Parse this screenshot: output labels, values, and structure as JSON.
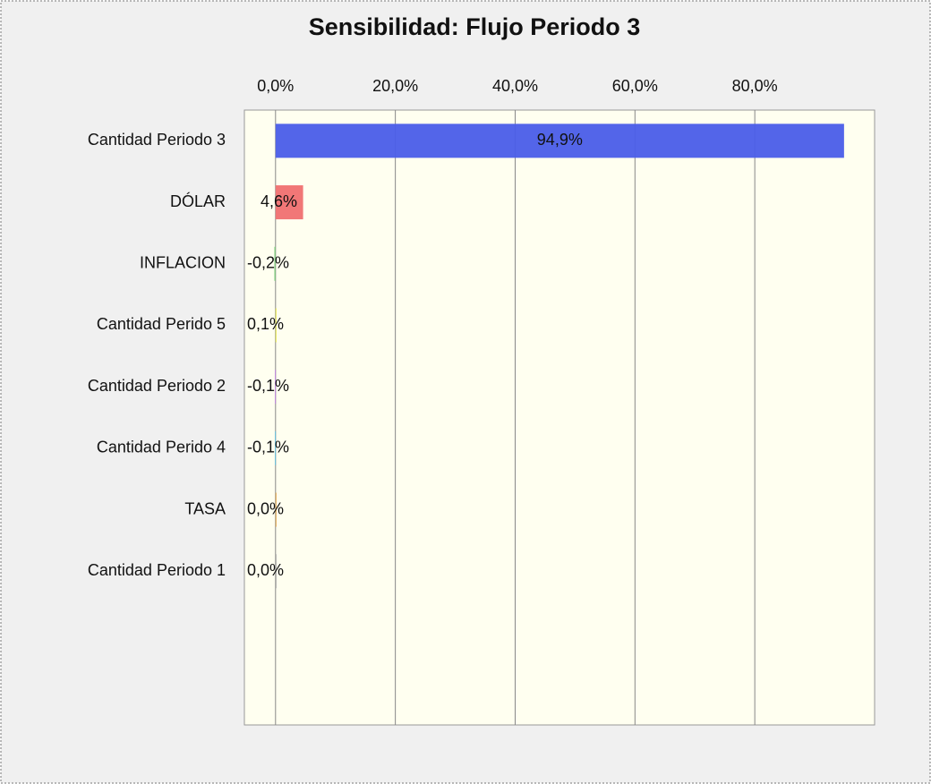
{
  "chart_data": {
    "type": "barh",
    "title": "Sensibilidad: Flujo Periodo 3",
    "categories": [
      "Cantidad Periodo 3",
      "DÓLAR",
      "INFLACION",
      "Cantidad Perido 5",
      "Cantidad Periodo 2",
      "Cantidad Perido 4",
      "TASA",
      "Cantidad Periodo 1"
    ],
    "values": [
      94.9,
      4.6,
      -0.2,
      0.1,
      -0.1,
      -0.1,
      0.0,
      0.0
    ],
    "value_labels": [
      "94,9%",
      "4,6%",
      "-0,2%",
      "0,1%",
      "-0,1%",
      "-0,1%",
      "0,0%",
      "0,0%"
    ],
    "colors": [
      "#4a5de8",
      "#f07070",
      "#7fd07f",
      "#e8e840",
      "#c080e0",
      "#60c0e0",
      "#e0a040",
      "#a0a0a0"
    ],
    "xlim": [
      -5.2,
      100
    ],
    "xticks": [
      {
        "value": 0,
        "label": "0,0%"
      },
      {
        "value": 20,
        "label": "20,0%"
      },
      {
        "value": 40,
        "label": "40,0%"
      },
      {
        "value": 60,
        "label": "60,0%"
      },
      {
        "value": 80,
        "label": "80,0%"
      }
    ],
    "grid": true
  }
}
